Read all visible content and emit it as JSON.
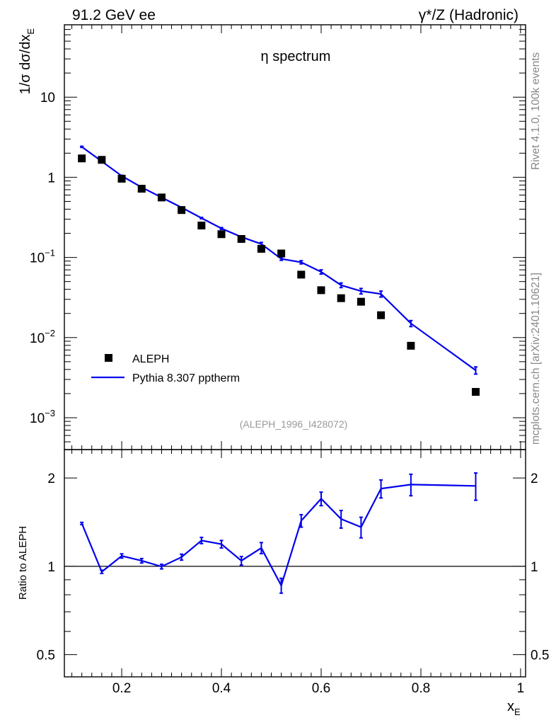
{
  "header": {
    "left": "91.2 GeV ee",
    "right": "γ*/Z (Hadronic)"
  },
  "side": {
    "rivet": "Rivet 4.1.0,  100k events",
    "mcplots": "mcplots.cern.ch [arXiv:2401.10621]"
  },
  "chart_data": [
    {
      "type": "scatter",
      "panel": "main",
      "title": "η spectrum",
      "analysis_tag": "(ALEPH_1996_I428072)",
      "ylabel_prefix": "1/σ  dσ/dx",
      "ylabel_sub": "E",
      "yscale": "log",
      "ylim": [
        0.0004,
        80
      ],
      "xlim": [
        0.085,
        1.01
      ],
      "ytick_labels": [
        {
          "value": 10,
          "label": "10",
          "sup": ""
        },
        {
          "value": 1,
          "label": "1",
          "sup": ""
        },
        {
          "value": 0.1,
          "label": "10",
          "sup": "−1"
        },
        {
          "value": 0.01,
          "label": "10",
          "sup": "−2"
        },
        {
          "value": 0.001,
          "label": "10",
          "sup": "−3"
        }
      ],
      "legend_position": "bottom-left",
      "series": [
        {
          "name": "ALEPH",
          "style": "markers",
          "color": "#000000",
          "x": [
            0.12,
            0.16,
            0.2,
            0.24,
            0.28,
            0.32,
            0.36,
            0.4,
            0.44,
            0.48,
            0.52,
            0.56,
            0.6,
            0.64,
            0.68,
            0.72,
            0.78,
            0.91
          ],
          "y": [
            1.72,
            1.65,
            0.96,
            0.72,
            0.56,
            0.39,
            0.25,
            0.195,
            0.17,
            0.128,
            0.112,
            0.061,
            0.039,
            0.031,
            0.028,
            0.019,
            0.0079,
            0.0021
          ]
        },
        {
          "name": "Pythia 8.307 pptherm",
          "style": "line",
          "color": "#0000ee",
          "x": [
            0.12,
            0.16,
            0.2,
            0.24,
            0.28,
            0.32,
            0.36,
            0.4,
            0.44,
            0.48,
            0.52,
            0.56,
            0.6,
            0.64,
            0.68,
            0.72,
            0.78,
            0.91
          ],
          "y": [
            2.4,
            1.58,
            1.04,
            0.75,
            0.56,
            0.42,
            0.31,
            0.23,
            0.18,
            0.147,
            0.096,
            0.087,
            0.066,
            0.045,
            0.038,
            0.035,
            0.015,
            0.0039
          ],
          "err": [
            0.04,
            0.03,
            0.02,
            0.014,
            0.01,
            0.008,
            0.006,
            0.006,
            0.006,
            0.007,
            0.004,
            0.004,
            0.004,
            0.003,
            0.003,
            0.003,
            0.0013,
            0.0004
          ]
        }
      ]
    },
    {
      "type": "line",
      "panel": "ratio",
      "ylabel": "Ratio to ALEPH",
      "xlabel": "x",
      "xlabel_sub": "E",
      "yscale": "log",
      "ylim": [
        0.42,
        2.5
      ],
      "xlim": [
        0.085,
        1.01
      ],
      "xtick_labels": [
        "0.2",
        "0.4",
        "0.6",
        "0.8",
        "1"
      ],
      "xtick_values": [
        0.2,
        0.4,
        0.6,
        0.8,
        1.0
      ],
      "ytick_labels": [
        "0.5",
        "1",
        "2"
      ],
      "ytick_values": [
        0.5,
        1,
        2
      ],
      "reference_line": 1,
      "series": [
        {
          "name": "Pythia 8.307 pptherm / ALEPH",
          "color": "#0000ee",
          "x": [
            0.12,
            0.16,
            0.2,
            0.24,
            0.28,
            0.32,
            0.36,
            0.4,
            0.44,
            0.48,
            0.52,
            0.56,
            0.6,
            0.64,
            0.68,
            0.72,
            0.78,
            0.91
          ],
          "y": [
            1.4,
            0.958,
            1.085,
            1.045,
            0.998,
            1.075,
            1.225,
            1.19,
            1.045,
            1.155,
            0.86,
            1.43,
            1.7,
            1.45,
            1.36,
            1.84,
            1.9,
            1.88
          ],
          "err": [
            0.012,
            0.012,
            0.018,
            0.018,
            0.018,
            0.025,
            0.03,
            0.035,
            0.035,
            0.05,
            0.05,
            0.07,
            0.09,
            0.1,
            0.11,
            0.13,
            0.16,
            0.2
          ]
        }
      ]
    }
  ]
}
